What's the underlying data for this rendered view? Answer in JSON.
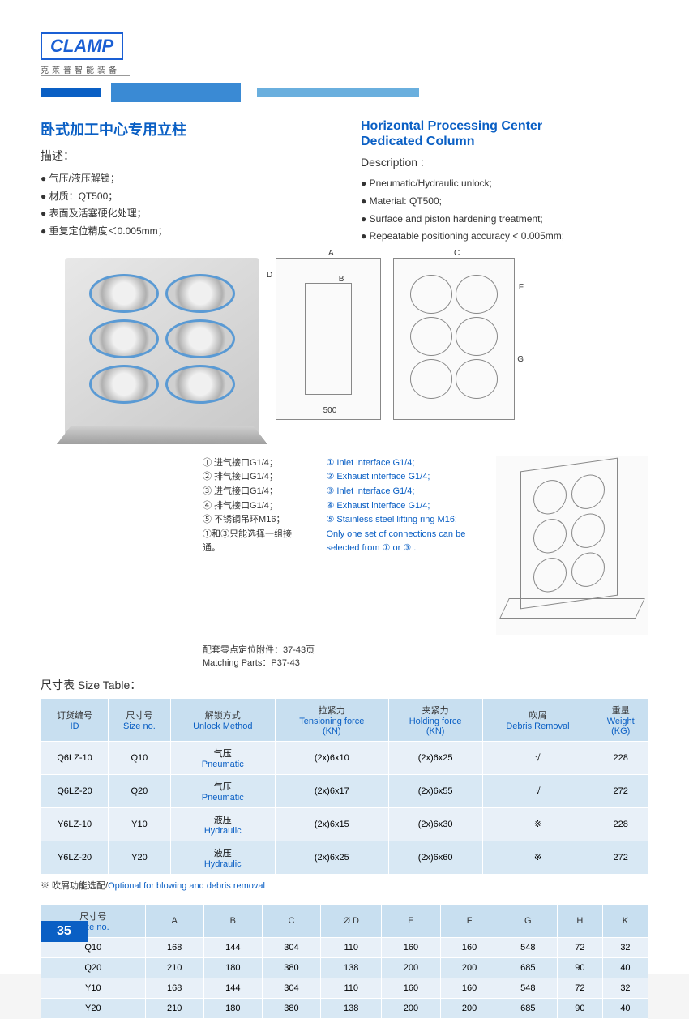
{
  "logo": {
    "brand": "CLAMP",
    "sub": "克莱普智能装备"
  },
  "titles": {
    "cn": "卧式加工中心专用立柱",
    "en_l1": "Horizontal Processing Center",
    "en_l2": "Dedicated Column"
  },
  "desc_label_cn": "描述：",
  "desc_label_en": "Description :",
  "desc_cn": [
    "气压/液压解锁；",
    "材质：QT500；",
    "表面及活塞硬化处理；",
    "重复定位精度＜0.005mm；"
  ],
  "desc_en": [
    "Pneumatic/Hydraulic unlock;",
    "Material: QT500;",
    "Surface and piston hardening treatment;",
    "Repeatable positioning accuracy < 0.005mm;"
  ],
  "diagram_labels": {
    "a": "A",
    "b": "B",
    "c": "C",
    "d": "D",
    "f": "F",
    "g": "G",
    "base": "500"
  },
  "notes_cn": [
    "① 进气接口G1/4；",
    "② 排气接口G1/4；",
    "③ 进气接口G1/4；",
    "④ 排气接口G1/4；",
    "⑤ 不锈钢吊环M16；",
    "①和③只能选择一组接通。"
  ],
  "notes_en": [
    "① Inlet interface  G1/4;",
    "② Exhaust interface  G1/4;",
    "③ Inlet interface  G1/4;",
    "④ Exhaust interface  G1/4;",
    "⑤ Stainless steel lifting ring M16;",
    "Only one set of connections can be",
    "selected from ① or ③ ."
  ],
  "matching_cn": "配套零点定位附件：37-43页",
  "matching_en": "Matching Parts：P37-43",
  "size_label": "尺寸表 Size Table：",
  "table1": {
    "headers": [
      {
        "cn": "订货编号",
        "en": "ID"
      },
      {
        "cn": "尺寸号",
        "en": "Size no."
      },
      {
        "cn": "解锁方式",
        "en": "Unlock Method"
      },
      {
        "cn": "拉紧力",
        "en": "Tensioning force",
        "unit": "(KN)"
      },
      {
        "cn": "夹紧力",
        "en": "Holding force",
        "unit": "(KN)"
      },
      {
        "cn": "吹屑",
        "en": "Debris Removal"
      },
      {
        "cn": "重量",
        "en": "Weight",
        "unit": "(KG)"
      }
    ],
    "rows": [
      {
        "id": "Q6LZ-10",
        "size": "Q10",
        "method_cn": "气压",
        "method_en": "Pneumatic",
        "tension": "(2x)6x10",
        "holding": "(2x)6x25",
        "debris": "√",
        "weight": "228"
      },
      {
        "id": "Q6LZ-20",
        "size": "Q20",
        "method_cn": "气压",
        "method_en": "Pneumatic",
        "tension": "(2x)6x17",
        "holding": "(2x)6x55",
        "debris": "√",
        "weight": "272"
      },
      {
        "id": "Y6LZ-10",
        "size": "Y10",
        "method_cn": "液压",
        "method_en": "Hydraulic",
        "tension": "(2x)6x15",
        "holding": "(2x)6x30",
        "debris": "※",
        "weight": "228"
      },
      {
        "id": "Y6LZ-20",
        "size": "Y20",
        "method_cn": "液压",
        "method_en": "Hydraulic",
        "tension": "(2x)6x25",
        "holding": "(2x)6x60",
        "debris": "※",
        "weight": "272"
      }
    ]
  },
  "foot_note_cn": "※ 吹屑功能选配/",
  "foot_note_en": "Optional for blowing and debris removal",
  "table2": {
    "headers": [
      {
        "cn": "尺寸号",
        "en": "Size no."
      },
      {
        "label": "A"
      },
      {
        "label": "B"
      },
      {
        "label": "C"
      },
      {
        "label": "Ø D"
      },
      {
        "label": "E"
      },
      {
        "label": "F"
      },
      {
        "label": "G"
      },
      {
        "label": "H"
      },
      {
        "label": "K"
      }
    ],
    "rows": [
      {
        "size": "Q10",
        "a": "168",
        "b": "144",
        "c": "304",
        "d": "110",
        "e": "160",
        "f": "160",
        "g": "548",
        "h": "72",
        "k": "32"
      },
      {
        "size": "Q20",
        "a": "210",
        "b": "180",
        "c": "380",
        "d": "138",
        "e": "200",
        "f": "200",
        "g": "685",
        "h": "90",
        "k": "40"
      },
      {
        "size": "Y10",
        "a": "168",
        "b": "144",
        "c": "304",
        "d": "110",
        "e": "160",
        "f": "160",
        "g": "548",
        "h": "72",
        "k": "32"
      },
      {
        "size": "Y20",
        "a": "210",
        "b": "180",
        "c": "380",
        "d": "138",
        "e": "200",
        "f": "200",
        "g": "685",
        "h": "90",
        "k": "40"
      }
    ]
  },
  "page_number": "35",
  "colors": {
    "primary_blue": "#0a5fc4",
    "mid_blue": "#3a8ad4",
    "light_blue": "#6aafde",
    "table_head": "#c8dff0",
    "table_row_odd": "#e8f0f8",
    "table_row_even": "#d8e8f4"
  }
}
